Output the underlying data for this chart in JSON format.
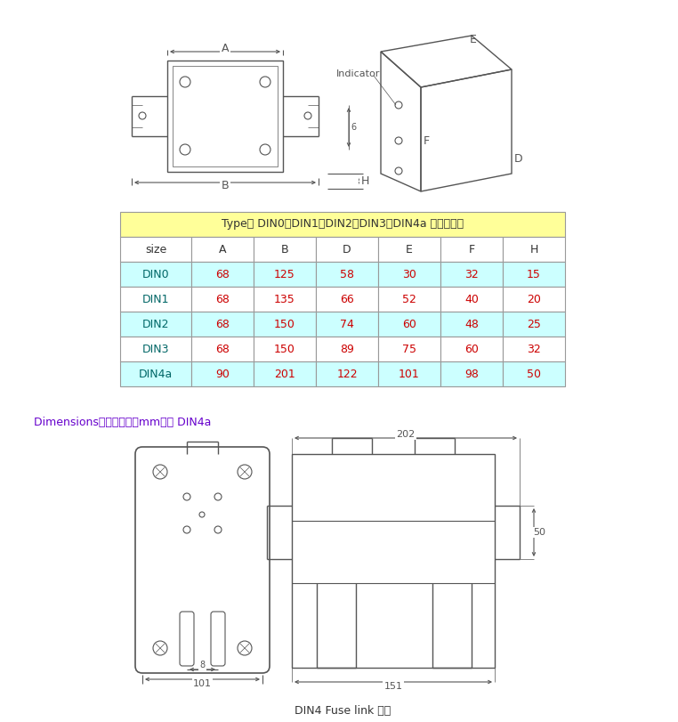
{
  "table_header_bg": "#FFFF99",
  "table_even_bg": "#CCFFFF",
  "table_odd_bg": "#FFFFFF",
  "table_border": "#999999",
  "table_title": "Type： DIN0、DIN1、DIN2、DIN3、DIN4a 尺寸示意图",
  "col_headers": [
    "size",
    "A",
    "B",
    "D",
    "E",
    "F",
    "H"
  ],
  "rows": [
    [
      "DIN0",
      "68",
      "125",
      "58",
      "30",
      "32",
      "15"
    ],
    [
      "DIN1",
      "68",
      "135",
      "66",
      "52",
      "40",
      "20"
    ],
    [
      "DIN2",
      "68",
      "150",
      "74",
      "60",
      "48",
      "25"
    ],
    [
      "DIN3",
      "68",
      "150",
      "89",
      "75",
      "60",
      "32"
    ],
    [
      "DIN4a",
      "90",
      "201",
      "122",
      "101",
      "98",
      "50"
    ]
  ],
  "dim_label": "Dimensions安装尺寸图（mm）： DIN4a",
  "bottom_label": "DIN4 Fuse link 熔体",
  "dim_label_color": "#6600CC",
  "line_color": "#555555",
  "bg_color": "#FFFFFF",
  "row_colors": [
    "#CCFFFF",
    "#FFFFFF",
    "#CCFFFF",
    "#FFFFFF",
    "#CCFFFF"
  ]
}
